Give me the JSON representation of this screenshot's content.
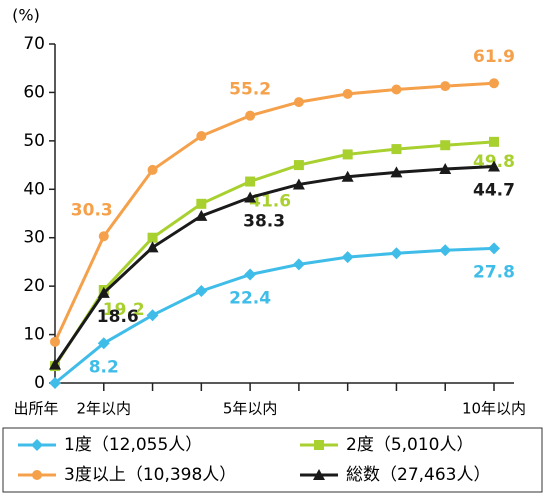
{
  "chart_data": {
    "type": "line",
    "y_label": "(%)",
    "categories": [
      "出所年",
      "2年以内",
      null,
      null,
      "5年以内",
      null,
      null,
      null,
      null,
      "10年以内"
    ],
    "ylim": [
      0,
      70
    ],
    "yticks": [
      0,
      10,
      20,
      30,
      40,
      50,
      60,
      70
    ],
    "series": [
      {
        "name": "1度（12,055人）",
        "color": "#3fbde8",
        "marker": "diamond",
        "values": [
          0,
          8.2,
          14,
          19,
          22.4,
          24.5,
          26,
          26.8,
          27.4,
          27.8
        ]
      },
      {
        "name": "2度（5,010人）",
        "color": "#a8d02f",
        "marker": "square",
        "values": [
          3.5,
          19.2,
          30,
          37,
          41.6,
          45,
          47.2,
          48.3,
          49.1,
          49.8
        ]
      },
      {
        "name": "3度以上（10,398人）",
        "color": "#f5a04a",
        "marker": "circle",
        "values": [
          8.5,
          30.3,
          44,
          51,
          55.2,
          58,
          59.7,
          60.6,
          61.3,
          61.9
        ]
      },
      {
        "name": "総数（27,463人）",
        "color": "#1a1a1a",
        "marker": "triangle",
        "values": [
          3.8,
          18.6,
          28,
          34.5,
          38.3,
          41,
          42.6,
          43.5,
          44.2,
          44.7
        ]
      }
    ]
  }
}
